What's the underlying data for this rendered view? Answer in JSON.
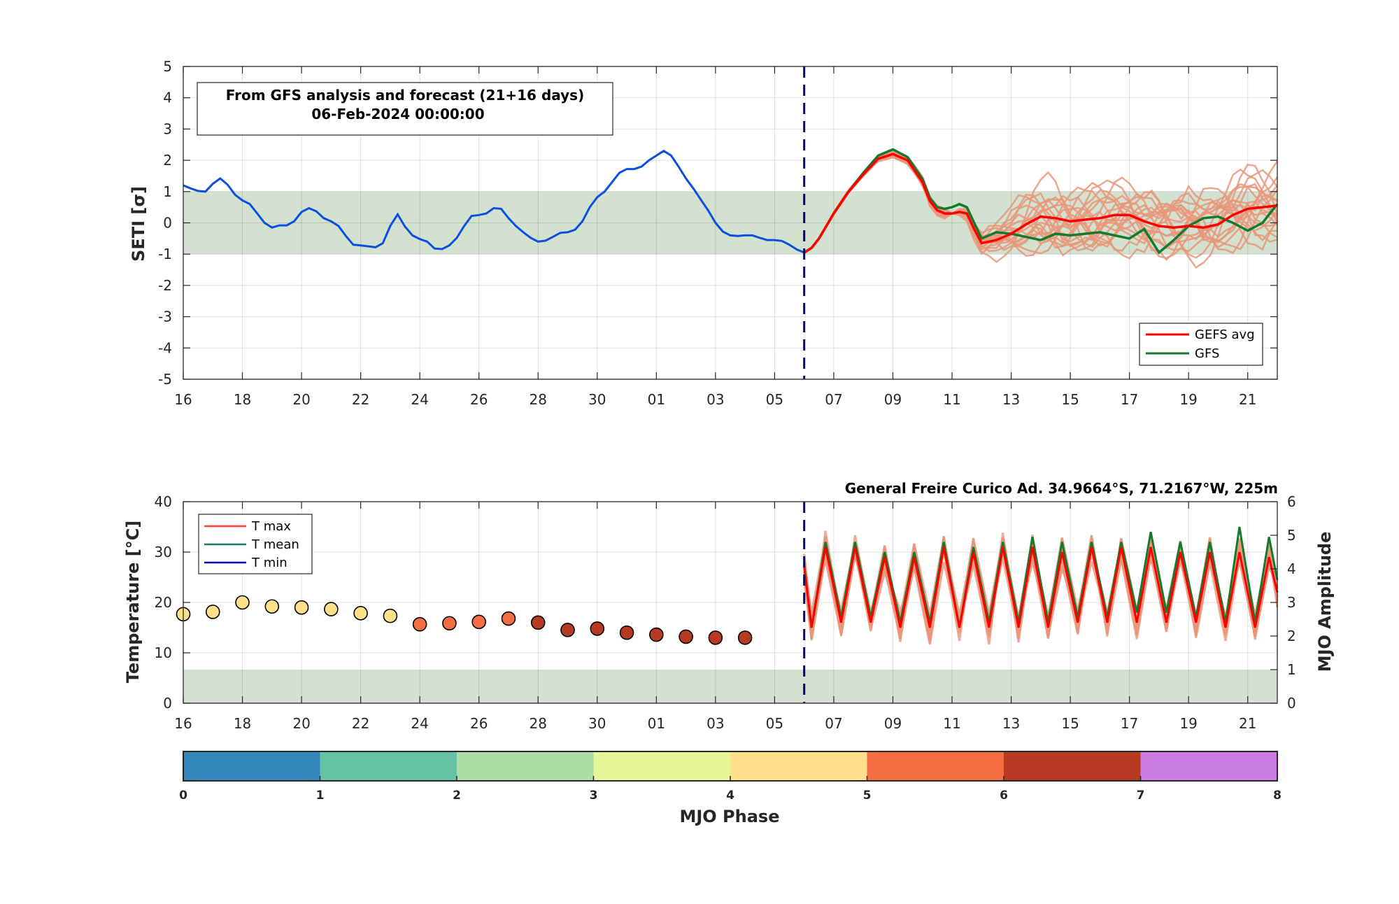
{
  "top_chart": {
    "ylabel": "SETI [σ]",
    "info_line1": "From GFS analysis and forecast (21+16 days)",
    "info_line2": "06-Feb-2024 00:00:00",
    "legend": [
      {
        "label": "GEFS avg",
        "color": "#ff0000"
      },
      {
        "label": "GFS",
        "color": "#137a2e"
      }
    ]
  },
  "bottom_chart": {
    "ylabel_left": "Temperature [°C]",
    "ylabel_right": "MJO Amplitude",
    "station": "General Freire Curico Ad. 34.9664°S, 71.2167°W, 225m",
    "legend": [
      {
        "label": "T max",
        "color": "#ff4040"
      },
      {
        "label": "T mean",
        "color": "#137a6a"
      },
      {
        "label": "T min",
        "color": "#0000aa"
      }
    ]
  },
  "colorbar": {
    "label": "MJO Phase",
    "ticks": [
      "0",
      "1",
      "2",
      "3",
      "4",
      "5",
      "6",
      "7",
      "8"
    ],
    "colors": [
      "#3288bd",
      "#66c2a5",
      "#abdda4",
      "#e6f598",
      "#fee08b",
      "#f46d43",
      "#b73b22",
      "#cb7ce0"
    ]
  },
  "chart_data": [
    {
      "type": "line",
      "title": "From GFS analysis and forecast (21+16 days)",
      "ylabel": "SETI [σ]",
      "xlabels": [
        "16",
        "18",
        "20",
        "22",
        "24",
        "26",
        "28",
        "30",
        "01",
        "03",
        "05",
        "07",
        "09",
        "11",
        "13",
        "15",
        "17",
        "19",
        "21"
      ],
      "x_start": "16-Jan-2024",
      "forecast_start": "06-Feb-2024",
      "ylim": [
        -5,
        5
      ],
      "yticks": [
        -5,
        -4,
        -3,
        -2,
        -1,
        0,
        1,
        2,
        3,
        4,
        5
      ],
      "shaded_band": [
        -1,
        1
      ],
      "grid": true,
      "legend_position": "bottom-right",
      "analysis": {
        "name": "",
        "color": "#0b4fdc",
        "x": [
          0,
          0.25,
          0.5,
          0.75,
          1,
          1.25,
          1.5,
          1.75,
          2,
          2.25,
          2.5,
          2.75,
          3,
          3.25,
          3.5,
          3.75,
          4,
          4.25,
          4.5,
          4.75,
          5,
          5.25,
          5.5,
          5.75,
          6,
          6.25,
          6.5,
          6.75,
          7,
          7.25,
          7.5,
          7.75,
          8,
          8.25,
          8.5,
          8.75,
          9,
          9.25,
          9.5,
          9.75,
          10,
          10.25,
          10.5,
          10.75,
          11,
          11.25,
          11.5,
          11.75,
          12,
          12.25,
          12.5,
          12.75,
          13,
          13.25,
          13.5,
          13.75,
          14,
          14.25,
          14.5,
          14.75,
          15,
          15.25,
          15.5,
          15.75,
          16,
          16.25,
          16.5,
          16.75,
          17,
          17.25,
          17.5,
          17.75,
          18,
          18.25,
          18.5,
          18.75,
          19,
          19.25,
          19.5,
          19.75,
          20,
          20.25,
          20.5,
          20.75,
          21
        ],
        "y": [
          1.2,
          1.1,
          1.02,
          1.0,
          1.25,
          1.42,
          1.22,
          0.9,
          0.72,
          0.6,
          0.3,
          0.0,
          -0.15,
          -0.08,
          -0.08,
          0.05,
          0.35,
          0.47,
          0.37,
          0.15,
          0.05,
          -0.1,
          -0.42,
          -0.7,
          -0.72,
          -0.75,
          -0.78,
          -0.65,
          -0.1,
          0.27,
          -0.12,
          -0.4,
          -0.52,
          -0.6,
          -0.82,
          -0.84,
          -0.72,
          -0.48,
          -0.1,
          0.22,
          0.25,
          0.3,
          0.47,
          0.45,
          0.15,
          -0.1,
          -0.3,
          -0.48,
          -0.6,
          -0.57,
          -0.45,
          -0.32,
          -0.3,
          -0.22,
          0.05,
          0.5,
          0.82,
          1.0,
          1.3,
          1.6,
          1.72,
          1.72,
          1.8,
          2.0,
          2.15,
          2.3,
          2.15,
          1.8,
          1.42,
          1.1,
          0.75,
          0.4,
          0.0,
          -0.28,
          -0.4,
          -0.42,
          -0.4,
          -0.4,
          -0.48,
          -0.55,
          -0.55,
          -0.58,
          -0.7,
          -0.85,
          -0.95
        ]
      },
      "gefs_avg": {
        "name": "GEFS avg",
        "color": "#ff0000",
        "x": [
          21,
          21.25,
          21.5,
          21.75,
          22,
          22.5,
          23,
          23.5,
          24,
          24.5,
          25,
          25.25,
          25.5,
          25.75,
          26,
          26.25,
          26.5,
          26.75,
          27,
          27.5,
          28,
          28.5,
          29,
          29.5,
          30,
          30.5,
          31,
          31.5,
          32,
          32.5,
          33,
          33.5,
          34,
          34.5,
          35,
          35.5,
          36,
          36.5,
          37
        ],
        "y": [
          -0.95,
          -0.8,
          -0.5,
          -0.1,
          0.3,
          1.0,
          1.55,
          2.05,
          2.2,
          2.0,
          1.3,
          0.7,
          0.4,
          0.3,
          0.3,
          0.35,
          0.3,
          -0.2,
          -0.65,
          -0.55,
          -0.35,
          -0.05,
          0.2,
          0.15,
          0.05,
          0.1,
          0.15,
          0.25,
          0.25,
          0.05,
          -0.1,
          -0.15,
          -0.1,
          -0.15,
          -0.05,
          0.25,
          0.45,
          0.5,
          0.55
        ]
      },
      "gfs": {
        "name": "GFS",
        "color": "#137a2e",
        "x": [
          21,
          21.25,
          21.5,
          21.75,
          22,
          22.5,
          23,
          23.5,
          24,
          24.5,
          25,
          25.25,
          25.5,
          25.75,
          26,
          26.25,
          26.5,
          26.75,
          27,
          27.5,
          28,
          28.5,
          29,
          29.5,
          30,
          30.5,
          31,
          31.5,
          32,
          32.5,
          33,
          33.5,
          34,
          34.5,
          35,
          35.5,
          36,
          36.5,
          37
        ],
        "y": [
          -0.95,
          -0.8,
          -0.5,
          -0.1,
          0.3,
          1.0,
          1.6,
          2.15,
          2.35,
          2.1,
          1.4,
          0.8,
          0.5,
          0.45,
          0.5,
          0.6,
          0.5,
          0.0,
          -0.5,
          -0.3,
          -0.35,
          -0.45,
          -0.55,
          -0.35,
          -0.4,
          -0.35,
          -0.3,
          -0.4,
          -0.5,
          -0.2,
          -0.95,
          -0.55,
          -0.1,
          0.15,
          0.2,
          0.0,
          -0.25,
          0.0,
          0.6
        ]
      },
      "ensemble_color": "#e9967a",
      "ensemble_members": 20
    },
    {
      "type": "scatter",
      "ylabel": "Temperature [°C]",
      "ylabel_right": "MJO Amplitude",
      "xlabels": [
        "16",
        "18",
        "20",
        "22",
        "24",
        "26",
        "28",
        "30",
        "01",
        "03",
        "05",
        "07",
        "09",
        "11",
        "13",
        "15",
        "17",
        "19",
        "21"
      ],
      "x_start": "16-Jan-2024",
      "ylim": [
        0,
        40
      ],
      "ylim_right": [
        0,
        6
      ],
      "yticks": [
        0,
        10,
        20,
        30,
        40
      ],
      "yticks_right": [
        0,
        1,
        2,
        3,
        4,
        5,
        6
      ],
      "shaded_band_right": [
        0,
        1
      ],
      "grid": true,
      "legend_position": "top-left",
      "mjo_points": {
        "name": "",
        "x": [
          0,
          1,
          2,
          3,
          4,
          5,
          6,
          7,
          8,
          9,
          10,
          11,
          12,
          13,
          14,
          15,
          16,
          17,
          18,
          19
        ],
        "amplitude": [
          2.65,
          2.72,
          3.0,
          2.88,
          2.85,
          2.8,
          2.68,
          2.6,
          2.35,
          2.38,
          2.42,
          2.52,
          2.4,
          2.18,
          2.22,
          2.1,
          2.04,
          1.98,
          1.95,
          1.95
        ],
        "phase": [
          4.5,
          4.5,
          4.5,
          4.5,
          4.5,
          4.5,
          4.5,
          4.5,
          5.5,
          5.5,
          5.5,
          5.5,
          6.5,
          6.5,
          6.5,
          6.5,
          6.5,
          6.5,
          6.5,
          6.5
        ]
      },
      "tmean_forecast": {
        "name": "T mean",
        "color": "#137a2e",
        "x_start": 21,
        "x_end": 37,
        "daily_max": [
          32,
          32,
          30,
          30,
          32,
          31,
          32,
          33,
          32,
          32,
          32,
          34,
          32,
          32,
          35,
          33
        ],
        "daily_min": [
          15,
          17,
          17,
          16,
          16,
          15,
          16,
          16,
          16,
          17,
          17,
          18,
          18,
          17,
          16,
          16
        ]
      },
      "tmax_forecast": {
        "name": "T max",
        "color": "#ff0000",
        "daily_max": [
          31,
          31,
          29,
          29,
          31,
          30,
          31,
          31,
          30,
          31,
          31,
          31,
          30,
          30,
          30,
          29
        ],
        "daily_min": [
          15,
          16,
          16,
          15,
          15,
          15,
          15,
          15,
          15,
          16,
          16,
          16,
          16,
          16,
          15,
          15
        ]
      }
    }
  ]
}
